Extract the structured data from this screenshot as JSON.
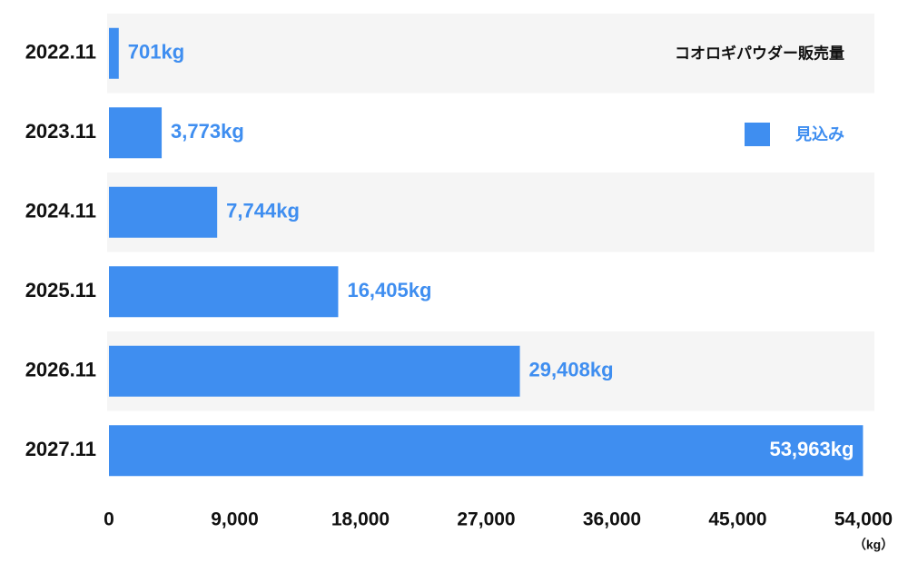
{
  "chart_data": {
    "type": "bar",
    "orientation": "horizontal",
    "title": "コオロギパウダー販売量",
    "x_label": "（kg）",
    "categories": [
      "2022.11",
      "2023.11",
      "2024.11",
      "2025.11",
      "2026.11",
      "2027.11"
    ],
    "series": [
      {
        "name": "見込み",
        "color": "#3f8ef0",
        "values": [
          701,
          3773,
          7744,
          16405,
          29408,
          53963
        ],
        "value_labels": [
          "701kg",
          "3,773kg",
          "7,744kg",
          "16,405kg",
          "29,408kg",
          "53,963kg"
        ]
      }
    ],
    "xlim": [
      0,
      54000
    ],
    "xticks": [
      0,
      {
        "value": 9000,
        "label": "9,000"
      },
      {
        "value": 18000,
        "label": "18,000"
      },
      {
        "value": 27000,
        "label": "27,000"
      },
      {
        "value": 36000,
        "label": "36,000"
      },
      {
        "value": 45000,
        "label": "45,000"
      },
      {
        "value": 54000,
        "label": "54,000"
      }
    ],
    "grid": false
  }
}
